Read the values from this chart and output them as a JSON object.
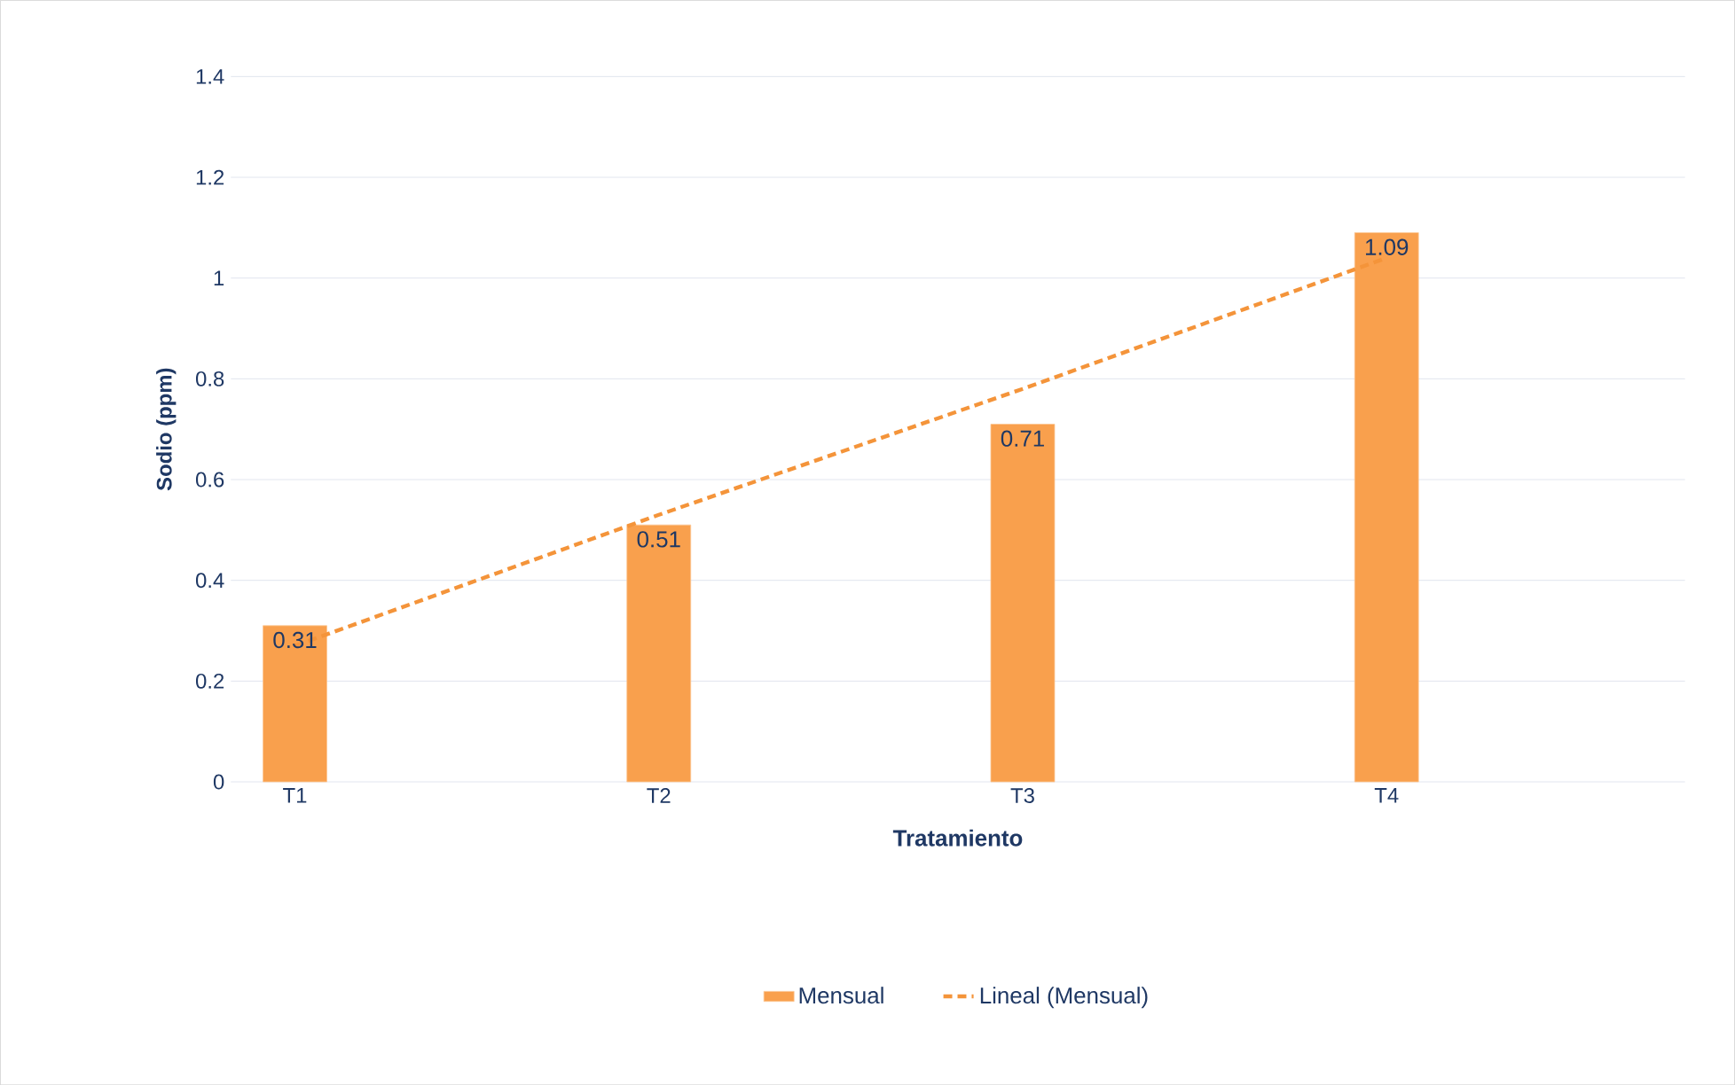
{
  "chart_data": {
    "type": "bar",
    "xlabel": "Tratamiento",
    "ylabel": "Sodio (ppm)",
    "categories": [
      "T1",
      "T2",
      "T3",
      "T4"
    ],
    "series": [
      {
        "name": "Mensual",
        "color": "#f9a04d",
        "values": [
          0.31,
          0.51,
          0.71,
          1.09
        ],
        "value_labels": [
          "0.31",
          "0.51",
          "0.71",
          "1.09"
        ]
      },
      {
        "name": "Lineal (Mensual)",
        "type": "line",
        "color": "#f4943a",
        "line_style": "dashed",
        "values": [
          0.27,
          0.53,
          0.78,
          1.04
        ]
      }
    ],
    "ylim": [
      0,
      1.4
    ],
    "yticks": [
      0,
      0.2,
      0.4,
      0.6,
      0.8,
      1,
      1.2,
      1.4
    ],
    "grid": "y",
    "legend": "bottom"
  }
}
